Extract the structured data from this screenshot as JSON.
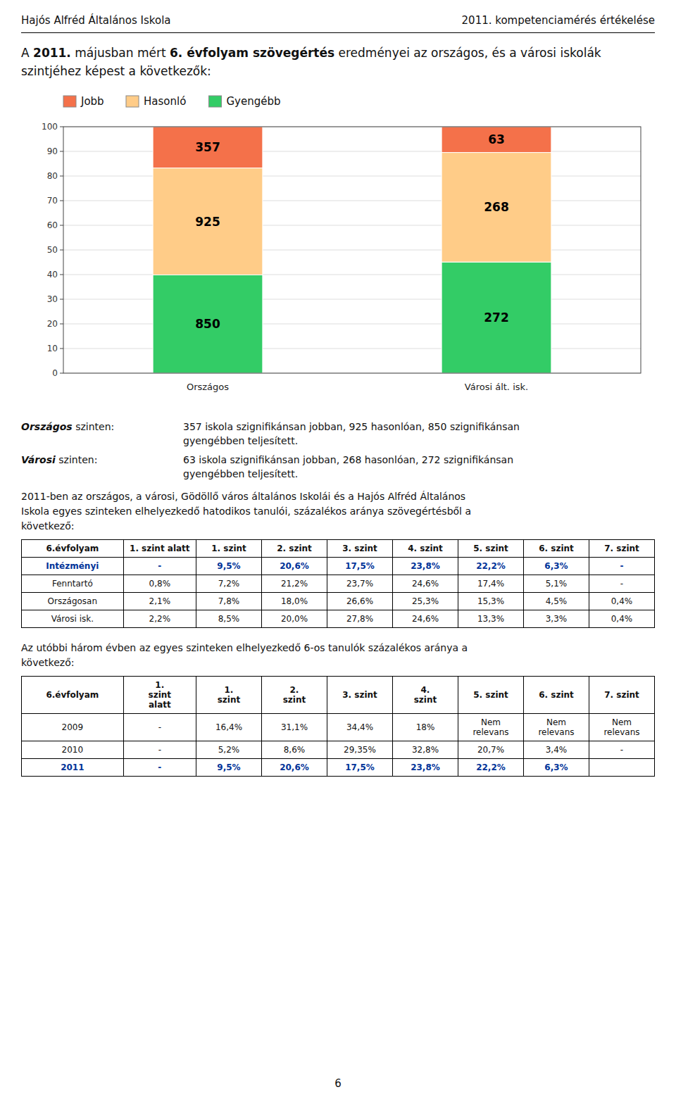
{
  "chart_data": {
    "type": "bar",
    "stacked": true,
    "categories": [
      "Országos",
      "Városi ált. isk."
    ],
    "series": [
      {
        "name": "Gyengébb",
        "color": "#33CC66",
        "values": [
          39.87,
          45.11
        ],
        "counts": [
          850,
          272
        ]
      },
      {
        "name": "Hasonló",
        "color": "#FFCC88",
        "values": [
          43.39,
          44.44
        ],
        "counts": [
          925,
          268
        ]
      },
      {
        "name": "Jobb",
        "color": "#F4714A",
        "values": [
          16.74,
          10.45
        ],
        "counts": [
          357,
          63
        ]
      }
    ],
    "ylim": [
      0,
      100
    ],
    "yticks": [
      0,
      10,
      20,
      30,
      40,
      50,
      60,
      70,
      80,
      90,
      100
    ],
    "grid": true,
    "legend": "top"
  },
  "page": {
    "header_left": "Hajós Alfréd Általános Iskola",
    "header_right": "2011. kompetenciamérés értékelése",
    "intro": [
      {
        "text": "A ",
        "bold": false
      },
      {
        "text": "2011.",
        "bold": true
      },
      {
        "text": " májusban mért ",
        "bold": false
      },
      {
        "text": "6. évfolyam szövegértés",
        "bold": true
      },
      {
        "text": " eredményei az országos, és a városi iskolák",
        "bold": false
      }
    ],
    "intro_line2": "szintjéhez képest a következők:",
    "summary": [
      {
        "label": "Országos",
        "suffix": " szinten:",
        "lines": [
          "357 iskola szignifikánsan jobban, 925 hasonlóan, 850 szignifikánsan",
          "gyengébben teljesített."
        ]
      },
      {
        "label": "Városi",
        "suffix": " szinten:",
        "lines": [
          "63 iskola szignifikánsan jobban, 268 hasonlóan, 272 szignifikánsan",
          "gyengébben teljesített."
        ]
      }
    ],
    "body": "2011-ben az országos, a városi, Gödöllő város általános Iskolái és a Hajós Alfréd Általános\nIskola egyes szinteken elhelyezkedő hatodikos tanulói, százalékos aránya szövegértésből a\nkövetkező:",
    "table2_intro": "Az utóbbi három évben az egyes szinteken elhelyezkedő 6-os tanulók százalékos aránya a\nkövetkező:",
    "tables": [
      {
        "headers": [
          "6.évfolyam",
          "1. szint alatt",
          "1. szint",
          "2. szint",
          "3. szint",
          "4. szint",
          "5. szint",
          "6. szint",
          "7. szint"
        ],
        "rows": [
          [
            "Intézményi",
            "-",
            "9,5%",
            "20,6%",
            "17,5%",
            "23,8%",
            "22,2%",
            "6,3%",
            "-"
          ],
          [
            "Fenntartó",
            "0,8%",
            "7,2%",
            "21,2%",
            "23,7%",
            "24,6%",
            "17,4%",
            "5,1%",
            "-"
          ],
          [
            "Országosan",
            "2,1%",
            "7,8%",
            "18,0%",
            "26,6%",
            "25,3%",
            "15,3%",
            "4,5%",
            "0,4%"
          ],
          [
            "Városi isk.",
            "2,2%",
            "8,5%",
            "20,0%",
            "27,8%",
            "24,6%",
            "13,3%",
            "3,3%",
            "0,4%"
          ]
        ],
        "bold_row": 0,
        "color": "#003399"
      },
      {
        "headers": [
          "6.évfolyam",
          "1.\nszint\nalatt",
          "1.\nszint",
          "2.\nszint",
          "3. szint",
          "4.\nszint",
          "5. szint",
          "6. szint",
          "7. szint"
        ],
        "rows": [
          [
            "2009",
            "-",
            "16,4%",
            "31,1%",
            "34,4%",
            "18%",
            "Nem\nrelevans",
            "Nem\nrelevans",
            "Nem\nrelevans"
          ],
          [
            "2010",
            "-",
            "5,2%",
            "8,6%",
            "29,35%",
            "32,8%",
            "20,7%",
            "3,4%",
            "-"
          ],
          [
            "2011",
            "-",
            "9,5%",
            "20,6%",
            "17,5%",
            "23,8%",
            "22,2%",
            "6,3%",
            null
          ]
        ],
        "bold_row": 2,
        "color": "#003399"
      }
    ],
    "page_number": "6"
  }
}
